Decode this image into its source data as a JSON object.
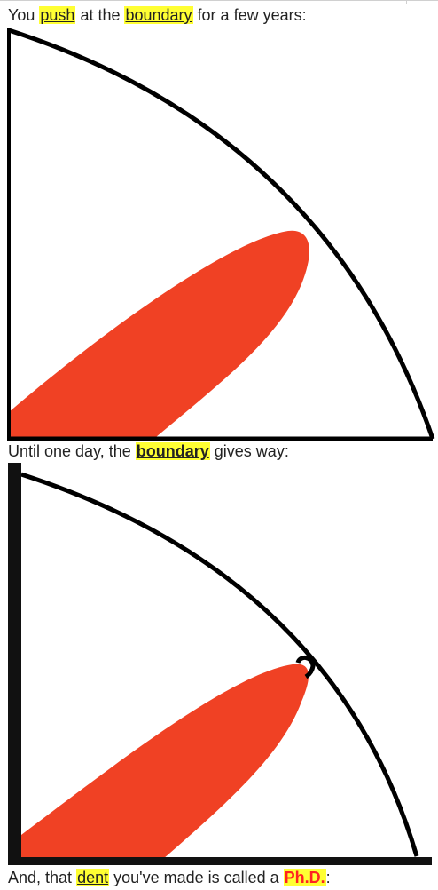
{
  "captions": {
    "first": {
      "t1": "You ",
      "push": "push",
      "t2": " at the ",
      "boundary": "boundary",
      "t3": " for a few years:"
    },
    "second": {
      "t1": "Until one day, the ",
      "boundary": "boundary",
      "t2": " gives way:"
    },
    "third": {
      "t1": "And, that ",
      "dent": "dent",
      "t2": " you've made is called a ",
      "phd": "Ph.D.",
      "t3": ":"
    }
  },
  "colors": {
    "highlight": "#ffff33",
    "blob": "#f04124",
    "stroke": "#000000",
    "phd_text": "#ff2222"
  }
}
